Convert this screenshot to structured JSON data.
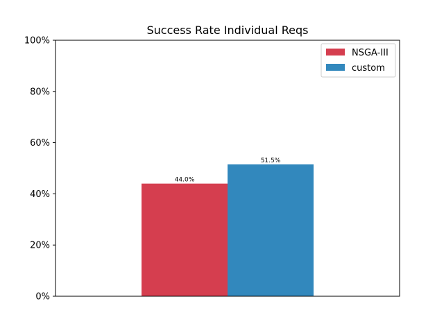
{
  "chart_data": {
    "type": "bar",
    "title": "Success Rate Individual Reqs",
    "xlabel": "",
    "ylabel": "",
    "categories": [
      ""
    ],
    "series": [
      {
        "name": "NSGA-III",
        "values": [
          44.0
        ],
        "color": "#d53e4f",
        "label": "44.0%"
      },
      {
        "name": "custom",
        "values": [
          51.5
        ],
        "color": "#3288bd",
        "label": "51.5%"
      }
    ],
    "ylim": [
      0,
      100
    ],
    "yticks": [
      0,
      20,
      40,
      60,
      80,
      100
    ],
    "ytick_labels": [
      "0%",
      "20%",
      "40%",
      "60%",
      "80%",
      "100%"
    ],
    "grid": false,
    "legend": {
      "position": "top-right"
    }
  }
}
